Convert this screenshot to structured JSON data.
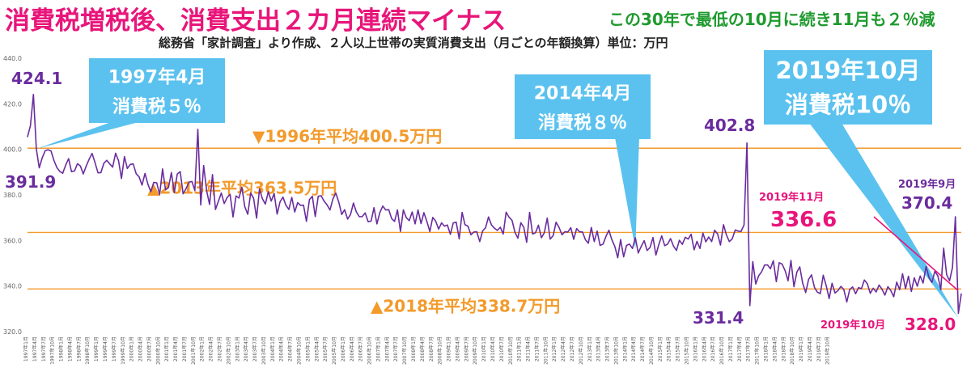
{
  "header": {
    "title": "消費税増税後、消費支出２カ月連続マイナス",
    "subtitle": "この30年で最低の10月に続き11月も２％減",
    "source": "総務省「家計調査」より作成、２人以上世帯の実質消費支出（月ごとの年額換算）単位：万円"
  },
  "colors": {
    "line": "#6a2c9e",
    "avg_line": "#f39a2b",
    "callout": "#5bc2ef",
    "accent": "#e8157a",
    "title": "#e8157a",
    "subtitle": "#1f9a2e"
  },
  "chart_data": {
    "type": "line",
    "title": "消費税増税後、消費支出２カ月連続マイナス",
    "subtitle": "この30年で最低の10月に続き11月も２％減",
    "ylabel": "単位：万円",
    "ylim": [
      320,
      440
    ],
    "yticks": [
      "440.0",
      "420.0",
      "400.0",
      "380.0",
      "360.0",
      "340.0",
      "320.0"
    ],
    "grid": false,
    "x_start": "1997年1月",
    "x_end": "2019年11月",
    "x_ticks": [
      "1997年1月",
      "1997年4月",
      "1997年7月",
      "1997年10月",
      "1998年1月",
      "1998年4月",
      "1998年7月",
      "1998年10月",
      "1999年1月",
      "1999年4月",
      "1999年7月",
      "1999年10月",
      "2000年1月",
      "2000年4月",
      "2000年7月",
      "2000年10月",
      "2001年1月",
      "2001年4月",
      "2001年7月",
      "2001年10月",
      "2002年1月",
      "2002年4月",
      "2002年7月",
      "2002年10月",
      "2003年1月",
      "2003年4月",
      "2003年7月",
      "2003年10月",
      "2004年1月",
      "2004年4月",
      "2004年7月",
      "2004年10月",
      "2005年1月",
      "2005年4月",
      "2005年7月",
      "2005年10月",
      "2006年1月",
      "2006年4月",
      "2006年7月",
      "2006年10月",
      "2007年1月",
      "2007年4月",
      "2007年7月",
      "2007年10月",
      "2008年1月",
      "2008年4月",
      "2008年7月",
      "2008年10月",
      "2009年1月",
      "2009年4月",
      "2009年7月",
      "2009年10月",
      "2010年1月",
      "2010年4月",
      "2010年7月",
      "2010年10月",
      "2011年1月",
      "2011年4月",
      "2011年7月",
      "2011年10月",
      "2012年1月",
      "2012年4月",
      "2012年7月",
      "2012年10月",
      "2013年1月",
      "2013年4月",
      "2013年7月",
      "2013年10月",
      "2014年1月",
      "2014年4月",
      "2014年7月",
      "2014年10月",
      "2015年1月",
      "2015年4月",
      "2015年7月",
      "2015年10月",
      "2016年1月",
      "2016年4月",
      "2016年7月",
      "2016年10月",
      "2017年1月",
      "2017年4月",
      "2017年7月",
      "2017年10月",
      "2018年1月",
      "2018年4月",
      "2018年7月",
      "2018年10月",
      "2019年1月",
      "2019年4月",
      "2019年7月",
      "2019年10月"
    ],
    "values": [
      405.5,
      410.4,
      424.1,
      400.2,
      391.9,
      396.2,
      399.4,
      399.8,
      399.3,
      395.1,
      392.0,
      390.3,
      389.5,
      393.1,
      395.9,
      390.2,
      390.5,
      393.7,
      392.7,
      389.2,
      392.7,
      395.7,
      398.2,
      394.1,
      389.7,
      389.8,
      393.9,
      395.2,
      393.6,
      392.2,
      398.3,
      395.0,
      387.2,
      396.8,
      391.6,
      393.4,
      393.6,
      389.3,
      387.9,
      384.3,
      389.4,
      384.7,
      381.4,
      385.5,
      385.3,
      380.1,
      391.4,
      382.2,
      383.2,
      389.8,
      381.0,
      389.2,
      390.2,
      380.5,
      382.8,
      385.6,
      385.9,
      381.9,
      408.8,
      375.6,
      392.9,
      381.8,
      375.8,
      388.9,
      373.6,
      377.2,
      380.8,
      376.2,
      378.9,
      380.2,
      370.3,
      379.5,
      378.6,
      383.4,
      374.8,
      371.5,
      380.8,
      378.5,
      369.8,
      382.6,
      378.3,
      376.0,
      381.4,
      377.3,
      380.6,
      371.6,
      377.0,
      379.0,
      375.5,
      373.6,
      378.9,
      372.5,
      376.6,
      375.4,
      375.5,
      368.4,
      377.9,
      379.4,
      370.5,
      379.4,
      379.6,
      377.3,
      375.6,
      373.4,
      378.2,
      380.8,
      376.8,
      371.4,
      373.5,
      369.4,
      371.4,
      376.4,
      372.5,
      370.4,
      370.5,
      372.1,
      368.2,
      368.5,
      374.4,
      367.3,
      372.3,
      375.1,
      373.4,
      373.5,
      369.6,
      368.4,
      373.4,
      364.0,
      373.4,
      370.0,
      368.7,
      372.5,
      367.3,
      373.4,
      367.4,
      372.2,
      368.4,
      363.9,
      370.1,
      368.5,
      365.0,
      367.7,
      366.3,
      366.8,
      362.7,
      367.7,
      368.0,
      360.7,
      372.3,
      366.9,
      366.3,
      362.5,
      363.7,
      363.8,
      359.5,
      364.2,
      365.6,
      370.3,
      366.8,
      365.4,
      364.4,
      365.8,
      362.8,
      372.4,
      370.2,
      368.8,
      363.6,
      361.0,
      367.8,
      365.8,
      359.2,
      372.3,
      362.8,
      363.4,
      366.7,
      361.2,
      363.4,
      369.8,
      360.6,
      362.1,
      368.0,
      365.8,
      362.5,
      363.8,
      363.7,
      365.6,
      360.5,
      365.2,
      363.8,
      363.7,
      360.3,
      358.8,
      365.7,
      359.5,
      364.1,
      357.8,
      358.4,
      361.8,
      364.5,
      360.3,
      357.4,
      352.4,
      360.4,
      352.8,
      357.8,
      358.4,
      356.5,
      361.2,
      354.5,
      357.4,
      359.9,
      355.6,
      356.9,
      361.3,
      353.6,
      358.2,
      362.0,
      357.7,
      358.4,
      360.8,
      357.5,
      355.6,
      360.1,
      358.3,
      361.4,
      360.6,
      362.7,
      355.9,
      359.6,
      356.5,
      363.2,
      359.4,
      361.5,
      359.5,
      364.5,
      362.9,
      358.0,
      366.9,
      362.5,
      359.5,
      360.7,
      364.6,
      364.1,
      364.0,
      366.8,
      402.8,
      331.4,
      350.7,
      340.9,
      344.5,
      346.2,
      349.2,
      349.3,
      347.6,
      351.1,
      341.9,
      350.2,
      349.6,
      346.7,
      342.3,
      351.2,
      339.7,
      346.1,
      348.4,
      341.2,
      337.1,
      342.9,
      344.9,
      339.3,
      337.3,
      336.7,
      344.7,
      340.1,
      334.5,
      341.2,
      336.9,
      338.0,
      339.8,
      338.5,
      333.0,
      338.5,
      339.6,
      336.6,
      339.3,
      338.8,
      342.6,
      341.0,
      336.8,
      339.0,
      337.4,
      340.4,
      338.6,
      336.0,
      339.7,
      338.0,
      335.3,
      341.7,
      338.4,
      345.4,
      338.8,
      344.3,
      337.6,
      343.6,
      339.9,
      344.4,
      341.3,
      348.6,
      343.7,
      341.6,
      346.5,
      344.5,
      338.4,
      356.6,
      345.0,
      342.3,
      348.1,
      370.4,
      328.0,
      336.6
    ],
    "averages": [
      {
        "label": "▼1996年平均400.5万円",
        "value": 400.5
      },
      {
        "label": "▲2013年平均363.5万円",
        "value": 363.5
      },
      {
        "label": "▲2018年平均338.7万円",
        "value": 338.7
      }
    ],
    "value_labels": {
      "v424": "424.1",
      "v391": "391.9",
      "v402": "402.8",
      "v331": "331.4",
      "v370_date": "2019年9月",
      "v370": "370.4",
      "v336_date": "2019年11月",
      "v336": "336.6",
      "v328_date": "2019年10月",
      "v328": "328.0"
    },
    "callouts": [
      {
        "line1": "1997年4月",
        "line2": "消費税５％"
      },
      {
        "line1": "2014年4月",
        "line2": "消費税８％"
      },
      {
        "line1": "2019年10月",
        "line2": "消費税10％"
      }
    ]
  }
}
